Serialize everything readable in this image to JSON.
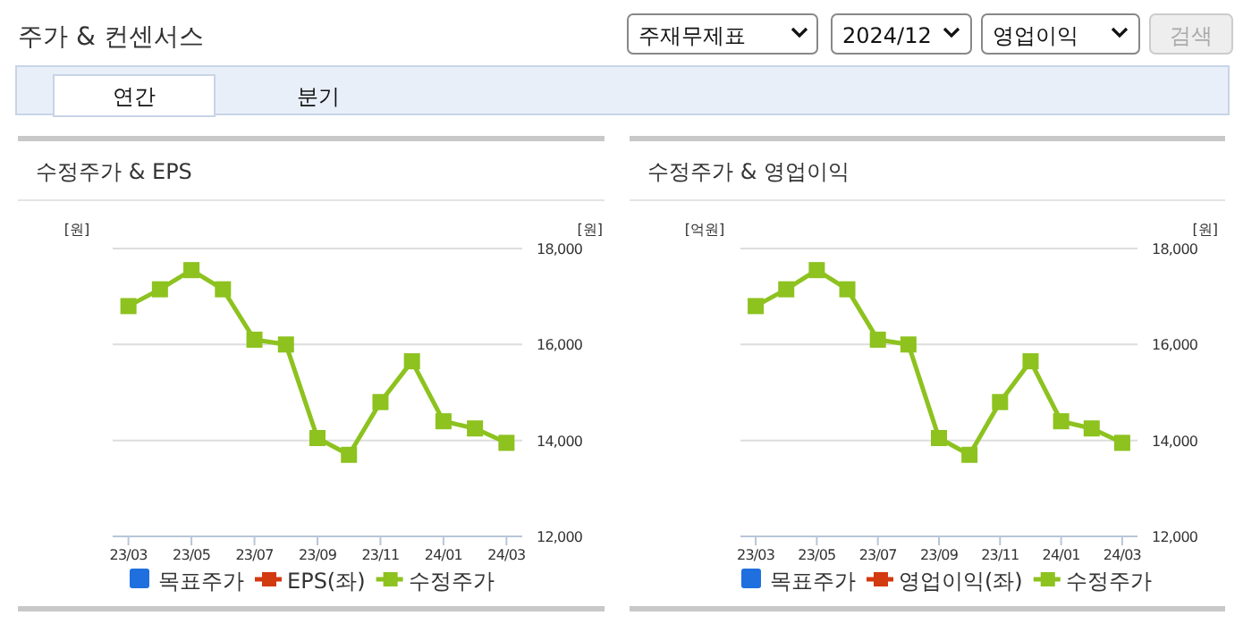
{
  "chart_data": [
    {
      "type": "line",
      "title": "수정주가 & EPS",
      "ylabel": "[원]",
      "y2label": "[원]",
      "annotations": [
        "주가 & 컨센서스",
        "주재무제표",
        "2024/12",
        "영업이익",
        "검색",
        "연간",
        "분기"
      ],
      "categories": [
        "23/03",
        null,
        "23/05",
        null,
        "23/07",
        null,
        "23/09",
        null,
        "23/11",
        null,
        "24/01",
        null,
        "24/03"
      ],
      "y2lim": [
        12000,
        18000
      ],
      "y2ticks": [
        {
          "value": 12000,
          "label": "12,000"
        },
        {
          "value": 14000,
          "label": "14,000"
        },
        {
          "value": 16000,
          "label": "16,000"
        },
        {
          "value": 18000,
          "label": "18,000"
        }
      ],
      "grid": "y",
      "legend": "bottom",
      "marker": "square",
      "series": [
        {
          "name": "목표주가",
          "type": "bar",
          "color": "#1f6fde",
          "values": [
            null,
            null,
            null,
            null,
            null,
            null,
            null,
            null,
            null,
            null,
            null,
            null,
            null
          ]
        },
        {
          "name": "EPS(좌)",
          "color": "#d23a10",
          "values": [
            null,
            null,
            null,
            null,
            null,
            null,
            null,
            null,
            null,
            null,
            null,
            null,
            null
          ]
        },
        {
          "name": "수정주가",
          "axis": "y2",
          "color": "#8dc21f",
          "values": [
            16800,
            17150,
            17550,
            17150,
            16100,
            16000,
            14050,
            13700,
            14800,
            15650,
            14400,
            14250,
            13950
          ]
        }
      ]
    },
    {
      "type": "line",
      "title": "수정주가 & 영업이익",
      "ylabel": "[억원]",
      "y2label": "[원]",
      "categories": [
        "23/03",
        null,
        "23/05",
        null,
        "23/07",
        null,
        "23/09",
        null,
        "23/11",
        null,
        "24/01",
        null,
        "24/03"
      ],
      "y2lim": [
        12000,
        18000
      ],
      "y2ticks": [
        {
          "value": 12000,
          "label": "12,000"
        },
        {
          "value": 14000,
          "label": "14,000"
        },
        {
          "value": 16000,
          "label": "16,000"
        },
        {
          "value": 18000,
          "label": "18,000"
        }
      ],
      "grid": "y",
      "legend": "bottom",
      "marker": "square",
      "series": [
        {
          "name": "목표주가",
          "type": "bar",
          "color": "#1f6fde",
          "values": [
            null,
            null,
            null,
            null,
            null,
            null,
            null,
            null,
            null,
            null,
            null,
            null,
            null
          ]
        },
        {
          "name": "영업이익(좌)",
          "color": "#d23a10",
          "values": [
            null,
            null,
            null,
            null,
            null,
            null,
            null,
            null,
            null,
            null,
            null,
            null,
            null
          ]
        },
        {
          "name": "수정주가",
          "axis": "y2",
          "color": "#8dc21f",
          "values": [
            16800,
            17150,
            17550,
            17150,
            16100,
            16000,
            14050,
            13700,
            14800,
            15650,
            14400,
            14250,
            13950
          ]
        }
      ]
    }
  ]
}
